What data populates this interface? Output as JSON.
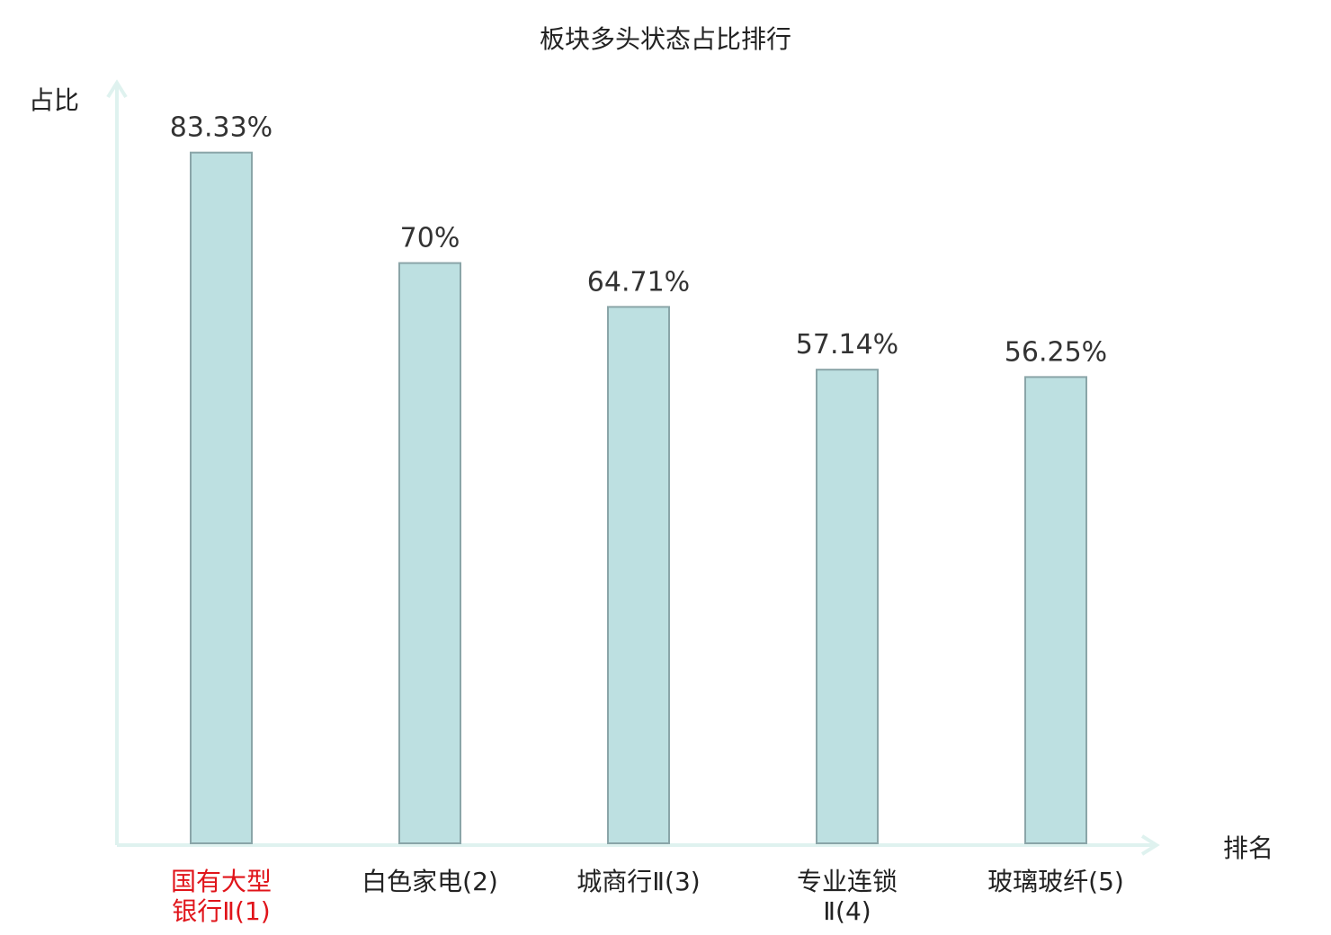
{
  "chart_data": {
    "type": "bar",
    "title": "板块多头状态占比排行",
    "xlabel": "排名",
    "ylabel": "占比",
    "categories": [
      "国有大型银行Ⅱ(1)",
      "白色家电(2)",
      "城商行Ⅱ(3)",
      "专业连锁Ⅱ(4)",
      "玻璃玻纤(5)"
    ],
    "category_lines": [
      [
        "国有大型",
        "银行Ⅱ(1)"
      ],
      [
        "白色家电(2)"
      ],
      [
        "城商行Ⅱ(3)"
      ],
      [
        "专业连锁",
        "Ⅱ(4)"
      ],
      [
        "玻璃玻纤(5)"
      ]
    ],
    "values": [
      83.33,
      70,
      64.71,
      57.14,
      56.25
    ],
    "value_labels": [
      "83.33%",
      "70%",
      "64.71%",
      "57.14%",
      "56.25%"
    ],
    "ylim": [
      0,
      100
    ],
    "grid": false,
    "highlight_index": 0,
    "colors": {
      "bar_fill": "#bde0e1",
      "bar_stroke": "#8aa5a8",
      "axis": "#dff2ef",
      "highlight_label": "#e0141a",
      "text": "#222222",
      "value_text": "#333333"
    }
  }
}
